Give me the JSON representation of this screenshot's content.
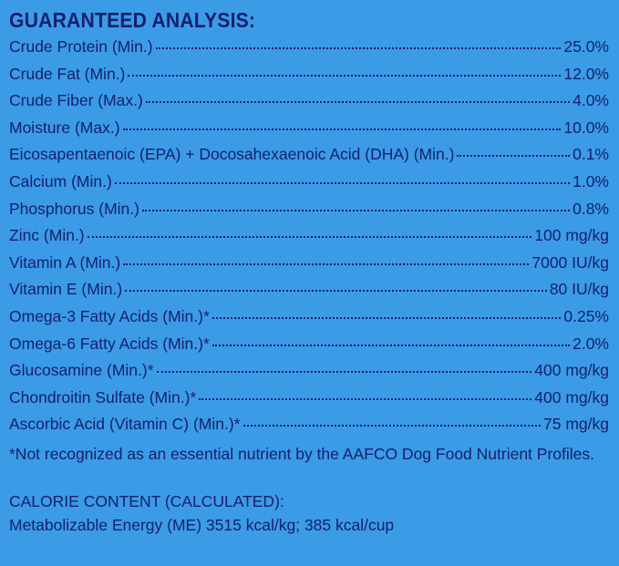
{
  "heading": "GUARANTEED ANALYSIS:",
  "nutrients": [
    {
      "label": "Crude Protein (Min.)",
      "value": "25.0%"
    },
    {
      "label": "Crude Fat (Min.)",
      "value": "12.0%"
    },
    {
      "label": "Crude Fiber (Max.)",
      "value": "4.0%"
    },
    {
      "label": "Moisture (Max.)",
      "value": "10.0%"
    },
    {
      "label": "Eicosapentaenoic (EPA) + Docosahexaenoic Acid (DHA) (Min.)",
      "value": "0.1%"
    },
    {
      "label": "Calcium (Min.)",
      "value": "1.0%"
    },
    {
      "label": "Phosphorus (Min.)",
      "value": "0.8%"
    },
    {
      "label": "Zinc (Min.)",
      "value": "100 mg/kg"
    },
    {
      "label": "Vitamin A (Min.)",
      "value": "7000 IU/kg"
    },
    {
      "label": "Vitamin E (Min.)",
      "value": "80 IU/kg"
    },
    {
      "label": "Omega-3 Fatty Acids (Min.)*",
      "value": "0.25%"
    },
    {
      "label": "Omega-6 Fatty Acids (Min.)*",
      "value": "2.0%"
    },
    {
      "label": "Glucosamine (Min.)*",
      "value": "400 mg/kg"
    },
    {
      "label": "Chondroitin Sulfate (Min.)*",
      "value": "400 mg/kg"
    },
    {
      "label": "Ascorbic Acid (Vitamin C) (Min.)*",
      "value": "75 mg/kg"
    }
  ],
  "footnote": "*Not recognized as an essential nutrient by the AAFCO Dog Food Nutrient Profiles.",
  "calorie": {
    "title": "CALORIE CONTENT (CALCULATED):",
    "line": "Metabolizable Energy (ME) 3515 kcal/kg;  385 kcal/cup"
  },
  "colors": {
    "background": "#3b9be6",
    "text": "#16206e"
  }
}
